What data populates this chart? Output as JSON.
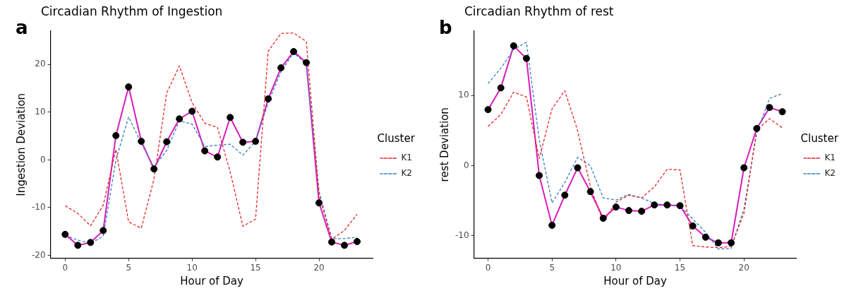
{
  "chart_data": [
    {
      "type": "line",
      "title": "Circadian Rhythm of Ingestion",
      "xlabel": "Hour of Day",
      "ylabel": "Ingestion Deviation",
      "legend_title": "Cluster",
      "annotations": [
        "a"
      ],
      "x": [
        0,
        1,
        2,
        3,
        4,
        5,
        6,
        7,
        8,
        9,
        10,
        11,
        12,
        13,
        14,
        15,
        16,
        17,
        18,
        19,
        20,
        21,
        22,
        23
      ],
      "series": [
        {
          "name": "K1",
          "color": "#e8262a",
          "line_style": "dashed",
          "marker": "none",
          "values": [
            -9.6,
            -11.2,
            -13.8,
            -9.5,
            2.2,
            -13.0,
            -14.3,
            -4,
            14,
            19.7,
            12,
            7.7,
            6.8,
            -2.5,
            -13.9,
            -12.4,
            22.8,
            26.5,
            26.6,
            24.8,
            -7.4,
            -16.6,
            -14.8,
            -11.4
          ]
        },
        {
          "name": "K2",
          "color": "#3b7fc0",
          "line_style": "dashed",
          "marker": "none",
          "values": [
            -15.8,
            -16.8,
            -17.5,
            -16,
            0,
            9,
            3.5,
            -1.5,
            2,
            8.2,
            7.5,
            2.8,
            3.1,
            3.3,
            1.0,
            3.9,
            12.0,
            18.5,
            22.5,
            20,
            -6.5,
            -16.5,
            -16.5,
            -16.2
          ]
        },
        {
          "type": "line",
          "color": "#d91cbd",
          "line_style": "solid",
          "marker": "none",
          "values": [
            -15.6,
            -17.9,
            -17.3,
            -14.8,
            5.1,
            15.3,
            3.9,
            -1.9,
            3.8,
            8.6,
            10.2,
            1.9,
            0.6,
            8.9,
            3.7,
            3.9,
            12.8,
            19.3,
            22.7,
            20.4,
            -9.0,
            -17.2,
            -17.9,
            -17.1
          ]
        },
        {
          "type": "scatter",
          "color": "#000000",
          "marker": "circle",
          "values": [
            -15.6,
            -17.9,
            -17.3,
            -14.8,
            5.1,
            15.3,
            3.9,
            -1.9,
            3.8,
            8.6,
            10.2,
            1.9,
            0.6,
            8.9,
            3.7,
            3.9,
            12.8,
            19.3,
            22.7,
            20.4,
            -9.0,
            -17.2,
            -17.9,
            -17.1
          ]
        }
      ],
      "xlim": [
        -1.15,
        24.25
      ],
      "xticks": [
        0,
        5,
        10,
        15,
        20
      ],
      "ylim": [
        -20.6,
        27
      ],
      "yticks": [
        -20,
        -10,
        0,
        10,
        20
      ],
      "grid": false,
      "legend": "right"
    },
    {
      "type": "line",
      "title": "Circadian Rhythm of rest",
      "xlabel": "Hour of Day",
      "ylabel": "rest Deviation",
      "legend_title": "Cluster",
      "annotations": [
        "b"
      ],
      "x": [
        0,
        1,
        2,
        3,
        4,
        5,
        6,
        7,
        8,
        9,
        10,
        11,
        12,
        13,
        14,
        15,
        16,
        17,
        18,
        19,
        20,
        21,
        22,
        23
      ],
      "series": [
        {
          "name": "K1",
          "color": "#e8262a",
          "line_style": "dashed",
          "marker": "none",
          "values": [
            5.6,
            7.3,
            10.5,
            9.8,
            1.0,
            8.1,
            10.7,
            5,
            -3,
            -8,
            -5.2,
            -4.2,
            -4.6,
            -3.0,
            -0.5,
            -0.6,
            -11.4,
            -11.6,
            -11.7,
            -11.5,
            -6.8,
            5.1,
            6.7,
            5.4
          ]
        },
        {
          "name": "K2",
          "color": "#3b7fc0",
          "line_style": "dashed",
          "marker": "none",
          "values": [
            11.7,
            13.9,
            16.6,
            17.6,
            3.7,
            -5.3,
            -2.4,
            1.2,
            0,
            -4.6,
            -4.9,
            -4.1,
            -4.6,
            -5.4,
            -5.6,
            -5.7,
            -7.6,
            -9.5,
            -11.9,
            -11.8,
            -6.1,
            4.7,
            9.6,
            10.3
          ]
        },
        {
          "type": "line",
          "color": "#d91cbd",
          "line_style": "solid",
          "marker": "none",
          "values": [
            8.0,
            11.1,
            17.1,
            15.3,
            -1.4,
            -8.5,
            -4.2,
            -0.3,
            -3.7,
            -7.5,
            -5.9,
            -6.4,
            -6.5,
            -5.6,
            -5.6,
            -5.7,
            -8.6,
            -10.2,
            -11.0,
            -11.0,
            -0.3,
            5.3,
            8.3,
            7.7
          ]
        },
        {
          "type": "scatter",
          "color": "#000000",
          "marker": "circle",
          "values": [
            8.0,
            11.1,
            17.1,
            15.3,
            -1.4,
            -8.5,
            -4.2,
            -0.3,
            -3.7,
            -7.5,
            -5.9,
            -6.4,
            -6.5,
            -5.6,
            -5.6,
            -5.7,
            -8.6,
            -10.2,
            -11.0,
            -11.0,
            -0.3,
            5.3,
            8.3,
            7.7
          ]
        }
      ],
      "xlim": [
        -1.1,
        24.1
      ],
      "xticks": [
        0,
        5,
        10,
        15,
        20
      ],
      "ylim": [
        -13.2,
        19.2
      ],
      "yticks": [
        -10,
        0,
        10
      ],
      "grid": false,
      "legend": "right"
    }
  ]
}
